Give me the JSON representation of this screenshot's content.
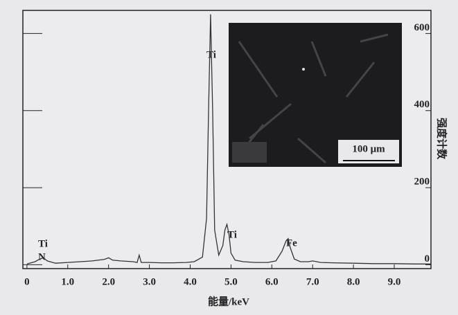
{
  "chart_data": {
    "type": "line",
    "x_label": "能量/keV",
    "y_label": "强度计数",
    "annotations": [
      "Ti",
      "N",
      "Ti",
      "Ti",
      "Fe"
    ],
    "inset_scale": "100 μm",
    "color": "#333333",
    "xlim": [
      -0.1,
      9.9
    ],
    "ylim": [
      -10,
      660
    ],
    "xticks": [
      0,
      {
        "value": 1,
        "label": "1.0"
      },
      {
        "value": 2,
        "label": "2.0"
      },
      {
        "value": 3,
        "label": "3.0"
      },
      {
        "value": 4,
        "label": "4.0"
      },
      {
        "value": 5,
        "label": "5.0"
      },
      {
        "value": 6,
        "label": "6.0"
      },
      {
        "value": 7,
        "label": "7.0"
      },
      {
        "value": 8,
        "label": "8.0"
      },
      {
        "value": 9,
        "label": "9.0"
      }
    ],
    "yticks": [
      0,
      200,
      400,
      600
    ],
    "x": [
      0,
      0.2,
      0.3,
      0.4,
      0.5,
      0.7,
      1.0,
      1.3,
      1.6,
      1.9,
      2.0,
      2.1,
      2.3,
      2.6,
      2.7,
      2.75,
      2.8,
      3.0,
      3.3,
      3.6,
      3.9,
      4.1,
      4.3,
      4.4,
      4.45,
      4.5,
      4.55,
      4.6,
      4.7,
      4.8,
      4.85,
      4.9,
      4.95,
      5.0,
      5.1,
      5.3,
      5.6,
      5.9,
      6.1,
      6.25,
      6.35,
      6.4,
      6.45,
      6.55,
      6.7,
      6.9,
      7.0,
      7.2,
      7.5,
      8.0,
      8.5,
      9.0,
      9.5,
      9.9
    ],
    "values": [
      2,
      8,
      14,
      18,
      10,
      4,
      6,
      8,
      10,
      14,
      18,
      12,
      10,
      8,
      6,
      25,
      6,
      6,
      5,
      5,
      6,
      8,
      20,
      120,
      400,
      650,
      400,
      90,
      25,
      50,
      90,
      105,
      80,
      30,
      12,
      8,
      6,
      6,
      10,
      35,
      62,
      68,
      45,
      15,
      8,
      8,
      10,
      6,
      5,
      4,
      3,
      3,
      2,
      2
    ]
  }
}
